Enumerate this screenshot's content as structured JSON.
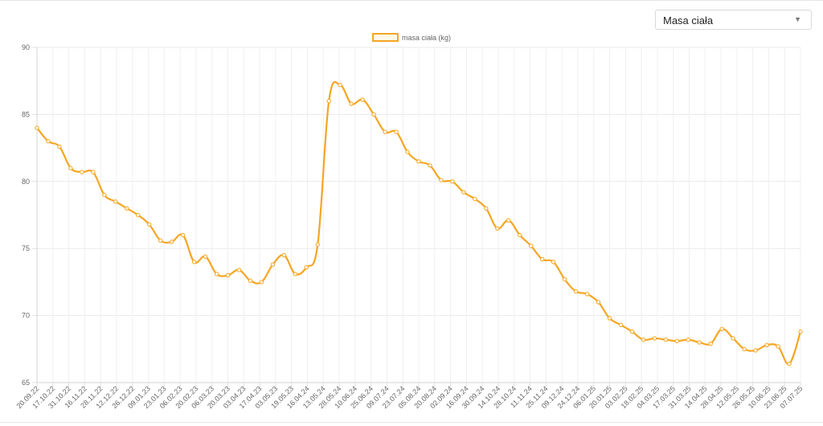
{
  "selector": {
    "selected": "Masa ciała",
    "caret_icon": "chevron-down-icon"
  },
  "chart_data": {
    "type": "line",
    "title": "",
    "xlabel": "",
    "ylabel": "",
    "ylim": [
      65,
      90
    ],
    "yticks": [
      65,
      70,
      75,
      80,
      85,
      90
    ],
    "grid": true,
    "legend": {
      "position": "top-center",
      "label": "masa ciała (kg)"
    },
    "color": "#f5a623",
    "x_tick_labels": [
      "20.09.22",
      "17.10.22",
      "31.10.22",
      "16.11.22",
      "28.11.22",
      "12.12.22",
      "26.12.22",
      "09.01.23",
      "23.01.23",
      "06.02.23",
      "20.02.23",
      "06.03.23",
      "20.03.23",
      "03.04.23",
      "17.04.23",
      "03.05.23",
      "19.05.23",
      "16.04.24",
      "13.05.24",
      "28.05.24",
      "10.06.24",
      "25.06.24",
      "09.07.24",
      "23.07.24",
      "05.08.24",
      "20.08.24",
      "02.09.24",
      "16.09.24",
      "30.09.24",
      "14.10.24",
      "28.10.24",
      "11.11.24",
      "25.11.24",
      "09.12.24",
      "24.12.24",
      "06.01.25",
      "20.01.25",
      "03.02.25",
      "18.02.25",
      "04.03.25",
      "17.03.25",
      "31.03.25",
      "14.04.25",
      "28.04.25",
      "12.05.25",
      "26.05.25",
      "10.06.25",
      "23.06.25",
      "07.07.25"
    ],
    "series": [
      {
        "name": "masa ciała (kg)",
        "values": [
          84.0,
          83.0,
          82.6,
          81.0,
          80.7,
          80.7,
          79.0,
          78.5,
          78.0,
          77.5,
          76.8,
          75.6,
          75.5,
          76.0,
          74.0,
          74.4,
          73.1,
          73.0,
          73.4,
          72.6,
          72.5,
          73.8,
          74.5,
          73.1,
          73.6,
          75.3,
          86.0,
          87.2,
          85.8,
          86.1,
          85.0,
          83.7,
          83.7,
          82.2,
          81.5,
          81.2,
          80.1,
          80.0,
          79.2,
          78.7,
          78.0,
          76.5,
          77.1,
          76.0,
          75.2,
          74.2,
          74.0,
          72.7,
          71.8,
          71.6,
          71.0,
          69.8,
          69.3,
          68.8,
          68.2,
          68.3,
          68.2,
          68.1,
          68.2,
          68.0,
          67.9,
          69.0,
          68.3,
          67.5,
          67.4,
          67.8,
          67.7,
          66.4,
          68.8
        ]
      }
    ]
  }
}
